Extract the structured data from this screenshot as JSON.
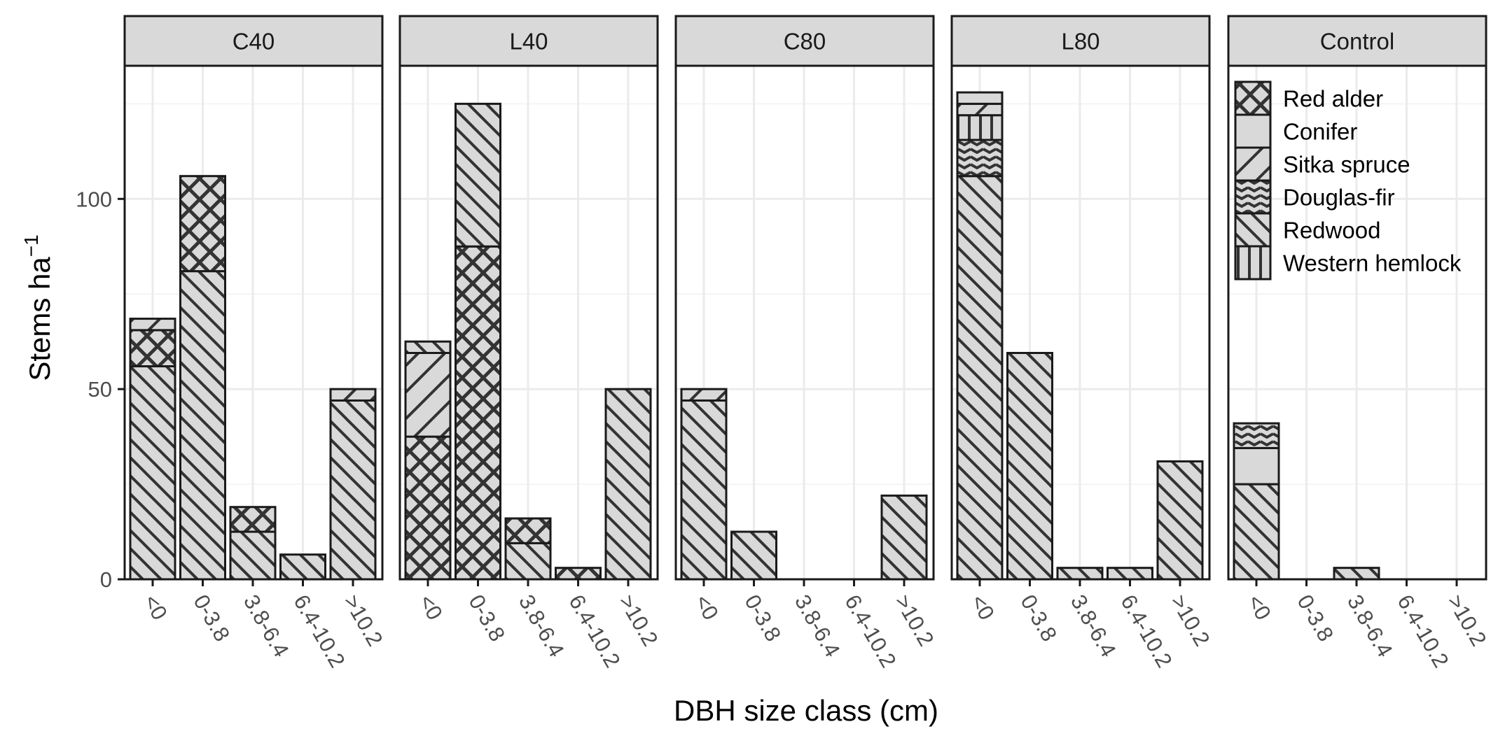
{
  "chart_data": {
    "type": "bar",
    "stacked": true,
    "xlabel": "DBH size class (cm)",
    "ylabel": "Stems ha",
    "ylabel_superscript": "−1",
    "ylim": [
      0,
      135
    ],
    "yticks": [
      0,
      50,
      100
    ],
    "grid": true,
    "legend_position": "inside-top-left of last panel",
    "categories": [
      "<0",
      "0-3.8",
      "3.8-6.4",
      "6.4-10.2",
      ">10.2"
    ],
    "species": [
      "Red alder",
      "Conifer",
      "Sitka spruce",
      "Douglas-fir",
      "Redwood",
      "Western hemlock"
    ],
    "stack_order": [
      "Redwood",
      "Red alder",
      "Sitka spruce",
      "Douglas-fir",
      "Western hemlock",
      "Conifer"
    ],
    "colors": {
      "fill": "#d9d9d9",
      "stroke": "#1a1a1a",
      "pattern": "#333333",
      "strip": "#d9d9d9",
      "grid": "#ebebeb"
    },
    "panels": [
      {
        "name": "C40",
        "series": [
          {
            "name": "Redwood",
            "values": [
              56,
              81,
              12.5,
              6.5,
              47
            ]
          },
          {
            "name": "Red alder",
            "values": [
              9.5,
              25,
              6.5,
              0,
              0
            ]
          },
          {
            "name": "Sitka spruce",
            "values": [
              3,
              0,
              0,
              0,
              3
            ]
          }
        ]
      },
      {
        "name": "L40",
        "series": [
          {
            "name": "Red alder",
            "values": [
              37.5,
              87.5,
              0,
              3,
              0
            ]
          },
          {
            "name": "Sitka spruce",
            "values": [
              22,
              0,
              0,
              0,
              0
            ]
          },
          {
            "name": "Redwood",
            "values": [
              3,
              37.5,
              9.5,
              0,
              50
            ]
          },
          {
            "name": "Red alder",
            "values": [
              0,
              0,
              6.5,
              0,
              0
            ]
          }
        ]
      },
      {
        "name": "C80",
        "series": [
          {
            "name": "Redwood",
            "values": [
              47,
              12.5,
              0,
              0,
              22
            ]
          },
          {
            "name": "Sitka spruce",
            "values": [
              3,
              0,
              0,
              0,
              0
            ]
          }
        ]
      },
      {
        "name": "L80",
        "series": [
          {
            "name": "Redwood",
            "values": [
              106,
              59.5,
              3,
              3,
              31
            ]
          },
          {
            "name": "Douglas-fir",
            "values": [
              9.5,
              0,
              0,
              0,
              0
            ]
          },
          {
            "name": "Western hemlock",
            "values": [
              6.5,
              0,
              0,
              0,
              0
            ]
          },
          {
            "name": "Sitka spruce",
            "values": [
              3,
              0,
              0,
              0,
              0
            ]
          },
          {
            "name": "Conifer",
            "values": [
              3,
              0,
              0,
              0,
              0
            ]
          }
        ]
      },
      {
        "name": "Control",
        "series": [
          {
            "name": "Redwood",
            "values": [
              25,
              0,
              3,
              0,
              0
            ]
          },
          {
            "name": "Conifer",
            "values": [
              9.5,
              0,
              0,
              0,
              0
            ]
          },
          {
            "name": "Douglas-fir",
            "values": [
              6.5,
              0,
              0,
              0,
              0
            ]
          }
        ]
      }
    ]
  }
}
